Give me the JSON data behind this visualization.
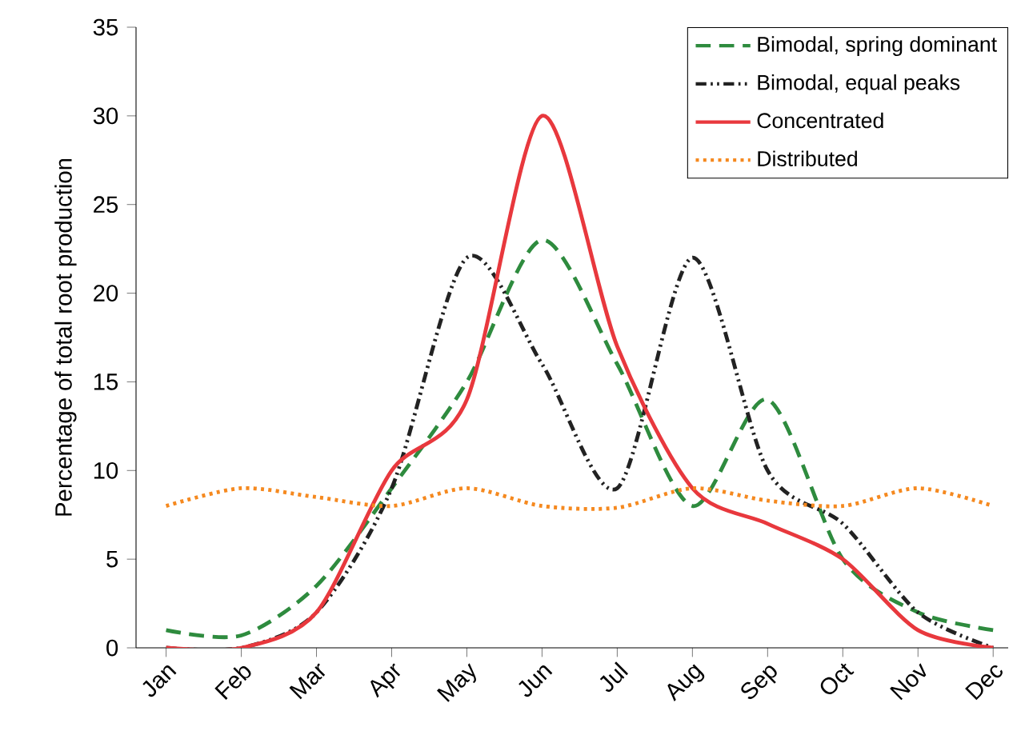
{
  "chart_data": {
    "type": "line",
    "ylabel": "Percentage of total root production",
    "categories": [
      "Jan",
      "Feb",
      "Mar",
      "Apr",
      "May",
      "Jun",
      "Jul",
      "Aug",
      "Sep",
      "Oct",
      "Nov",
      "Dec"
    ],
    "ylim": [
      0,
      35
    ],
    "yticks": [
      0,
      5,
      10,
      15,
      20,
      25,
      30,
      35
    ],
    "grid": false,
    "legend": "top right",
    "marker": "none",
    "series": [
      {
        "name": "Bimodal, spring dominant",
        "color": "#2e8b3e",
        "line_style": "dashed",
        "values": [
          1,
          0.7,
          3.5,
          9,
          15,
          23,
          16,
          8,
          14,
          5,
          2,
          1
        ]
      },
      {
        "name": "Bimodal, equal peaks",
        "color": "#222222",
        "line_style": "dashdotdotted",
        "values": [
          0,
          0,
          2,
          9,
          22,
          16,
          9,
          22,
          10,
          7,
          2,
          0
        ]
      },
      {
        "name": "Concentrated",
        "color": "#e8383d",
        "line_style": "solid",
        "values": [
          0,
          0,
          2,
          10,
          14,
          30,
          17,
          9,
          7,
          5,
          1,
          0
        ]
      },
      {
        "name": "Distributed",
        "color": "#f5891f",
        "line_style": "dotted",
        "values": [
          8,
          9,
          8.5,
          8,
          9,
          8,
          7.9,
          9,
          8.3,
          8,
          9,
          8
        ]
      }
    ]
  }
}
